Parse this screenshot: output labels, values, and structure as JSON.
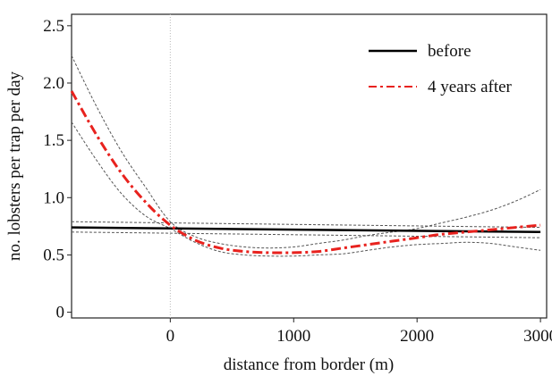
{
  "chart_data": {
    "type": "line",
    "xlabel": "distance from border (m)",
    "ylabel": "no. lobsters per trap per day",
    "xlim": [
      -800,
      3050
    ],
    "ylim": [
      -0.05,
      2.6
    ],
    "xticks": [
      0,
      1000,
      2000,
      3000
    ],
    "xtick_labels": [
      "0",
      "1000",
      "2000",
      "3000"
    ],
    "yticks": [
      0,
      0.5,
      1.0,
      1.5,
      2.0,
      2.5
    ],
    "ytick_labels": [
      "0",
      "0.5",
      "1.0",
      "1.5",
      "2.0",
      "2.5"
    ],
    "vline_x": 0,
    "grid": false,
    "legend_position": "top-right",
    "series": [
      {
        "name": "before",
        "color": "#000000",
        "style": "solid",
        "x": [
          -800,
          3000
        ],
        "y": [
          0.74,
          0.7
        ],
        "ci_lower": [
          0.7,
          0.65
        ],
        "ci_upper": [
          0.79,
          0.74
        ]
      },
      {
        "name": "4 years after",
        "color": "#e8221e",
        "style": "dashdot",
        "x": [
          -800,
          -600,
          -400,
          -200,
          0,
          200,
          400,
          600,
          800,
          1000,
          1200,
          1400,
          1600,
          1800,
          2000,
          2200,
          2400,
          2600,
          2800,
          3000
        ],
        "y": [
          1.93,
          1.55,
          1.22,
          0.96,
          0.76,
          0.63,
          0.56,
          0.53,
          0.52,
          0.52,
          0.53,
          0.56,
          0.59,
          0.62,
          0.65,
          0.68,
          0.7,
          0.72,
          0.74,
          0.76
        ],
        "ci_lower": [
          1.66,
          1.33,
          1.04,
          0.84,
          0.73,
          0.61,
          0.53,
          0.5,
          0.49,
          0.49,
          0.5,
          0.51,
          0.54,
          0.57,
          0.59,
          0.6,
          0.61,
          0.6,
          0.57,
          0.54
        ],
        "ci_upper": [
          2.24,
          1.8,
          1.41,
          1.09,
          0.79,
          0.66,
          0.6,
          0.57,
          0.56,
          0.57,
          0.6,
          0.63,
          0.67,
          0.7,
          0.73,
          0.78,
          0.83,
          0.89,
          0.97,
          1.07
        ]
      }
    ]
  }
}
